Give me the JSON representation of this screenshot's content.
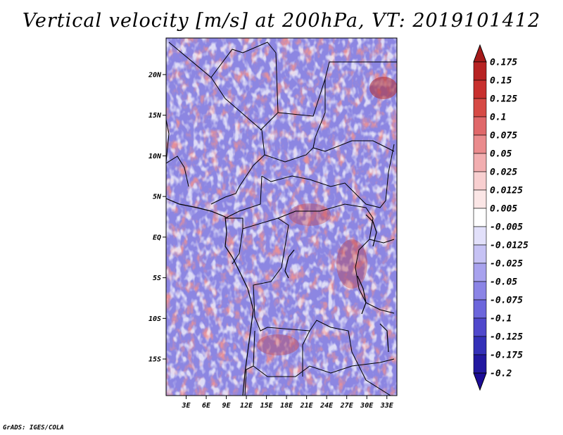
{
  "title": "Vertical velocity [m/s] at 200hPa, VT: 2019101412",
  "credit": "GrADS: IGES/COLA",
  "map": {
    "lon_range": [
      0,
      34.5
    ],
    "lat_range": [
      -19.5,
      24.5
    ],
    "lat_ticks": [
      {
        "value": 20,
        "label": "20N"
      },
      {
        "value": 15,
        "label": "15N"
      },
      {
        "value": 10,
        "label": "10N"
      },
      {
        "value": 5,
        "label": "5N"
      },
      {
        "value": 0,
        "label": "EQ"
      },
      {
        "value": -5,
        "label": "5S"
      },
      {
        "value": -10,
        "label": "10S"
      },
      {
        "value": -15,
        "label": "15S"
      }
    ],
    "lon_ticks": [
      {
        "value": 3,
        "label": "3E"
      },
      {
        "value": 6,
        "label": "6E"
      },
      {
        "value": 9,
        "label": "9E"
      },
      {
        "value": 12,
        "label": "12E"
      },
      {
        "value": 15,
        "label": "15E"
      },
      {
        "value": 18,
        "label": "18E"
      },
      {
        "value": 21,
        "label": "21E"
      },
      {
        "value": 24,
        "label": "24E"
      },
      {
        "value": 27,
        "label": "27E"
      },
      {
        "value": 30,
        "label": "30E"
      },
      {
        "value": 33,
        "label": "33E"
      }
    ]
  },
  "colorbar": {
    "levels": [
      {
        "label": "0.175",
        "color": "#a51a1a"
      },
      {
        "label": "0.15",
        "color": "#b72222"
      },
      {
        "label": "0.125",
        "color": "#c8302e"
      },
      {
        "label": "0.1",
        "color": "#d64a45"
      },
      {
        "label": "0.075",
        "color": "#e0686a"
      },
      {
        "label": "0.05",
        "color": "#ea8b8d"
      },
      {
        "label": "0.025",
        "color": "#f2aeb0"
      },
      {
        "label": "0.0125",
        "color": "#f8cfd0"
      },
      {
        "label": "0.005",
        "color": "#fbe6e6"
      },
      {
        "label": "-0.005",
        "color": "#ffffff"
      },
      {
        "label": "-0.0125",
        "color": "#e2e0fa"
      },
      {
        "label": "-0.025",
        "color": "#c6c2f4"
      },
      {
        "label": "-0.05",
        "color": "#a8a2ee"
      },
      {
        "label": "-0.075",
        "color": "#8b84e6"
      },
      {
        "label": "-0.1",
        "color": "#6c66dc"
      },
      {
        "label": "-0.125",
        "color": "#5048cc"
      },
      {
        "label": "-0.175",
        "color": "#3430b8"
      },
      {
        "label": "-0.2",
        "color": "#2218a0"
      }
    ],
    "top_cap_color": "#a51a1a",
    "bottom_cap_color": "#1c0c96"
  },
  "colors": {
    "positive": "#c83232",
    "negative": "#4a44d0",
    "border": "#000000"
  }
}
